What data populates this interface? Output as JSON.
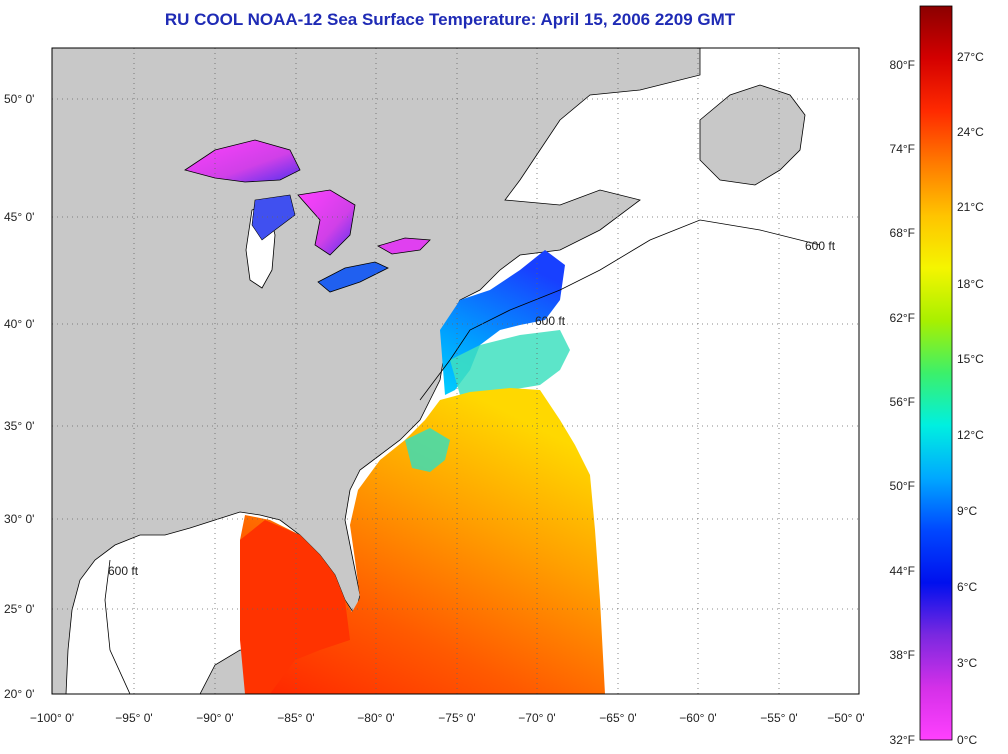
{
  "title": "RU COOL  NOAA-12  Sea Surface Temperature:  April 15, 2006 2209 GMT",
  "colors": {
    "title": "#1f2bb5",
    "land": "#c8c8c8",
    "nodata_ocean": "#ffffff",
    "grid": "#666666"
  },
  "map": {
    "lon_labels": [
      "−100° 0'",
      "−95° 0'",
      "−90° 0'",
      "−85° 0'",
      "−80° 0'",
      "−75° 0'",
      "−70° 0'",
      "−65° 0'",
      "−60° 0'",
      "−55° 0'",
      "−50° 0'"
    ],
    "lat_labels": [
      "50° 0'",
      "45° 0'",
      "40° 0'",
      "35° 0'",
      "30° 0'",
      "25° 0'",
      "20° 0'"
    ],
    "isobath_label": "600 ft",
    "lon_range": [
      -100,
      -50
    ],
    "lat_range": [
      20,
      52.5
    ]
  },
  "colorbar": {
    "fahrenheit_labels": [
      "80°F",
      "74°F",
      "68°F",
      "62°F",
      "56°F",
      "50°F",
      "44°F",
      "38°F",
      "32°F"
    ],
    "celsius_labels": [
      "27°C",
      "24°C",
      "21°C",
      "18°C",
      "15°C",
      "12°C",
      "9°C",
      "6°C",
      "3°C",
      "0°C"
    ],
    "gradient_stops": [
      "#8b0000",
      "#d40000",
      "#ff2a00",
      "#ff7a00",
      "#ffc400",
      "#f5f500",
      "#a8f000",
      "#3cf06a",
      "#00f0e0",
      "#00a8ff",
      "#0048ff",
      "#0010ee",
      "#7a28e0",
      "#d430e8",
      "#ff40ff"
    ]
  }
}
